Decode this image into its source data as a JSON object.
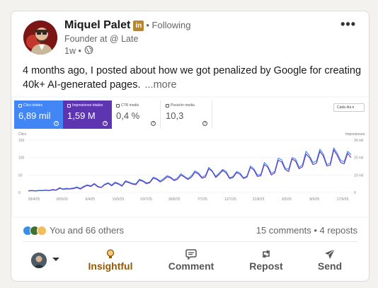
{
  "post": {
    "author": {
      "name": "Miquel Palet",
      "badge": "in",
      "following": "• Following",
      "headline": "Founder at @ Late",
      "time": "1w •"
    },
    "text": "4 months ago, I posted about how we got penalized by Google for creating 40k+ AI-generated pages.",
    "see_more": "...more"
  },
  "report": {
    "metrics": [
      {
        "label": "Clics totales",
        "value": "6,89 mil",
        "color": "#4285f4",
        "active": true
      },
      {
        "label": "Impresiones totales",
        "value": "1,59 M",
        "color": "#5e35b1",
        "active": true
      },
      {
        "label": "CTR medio",
        "value": "0,4 %",
        "active": false
      },
      {
        "label": "Posición media",
        "value": "10,3",
        "active": false
      }
    ],
    "dropdown": "Cada día",
    "help": "?"
  },
  "chart_data": {
    "type": "line",
    "left_axis_label": "Clics",
    "right_axis_label": "Impresiones",
    "left_ticks": [
      "150",
      "100",
      "50",
      "0"
    ],
    "right_ticks": [
      "30 mil",
      "20 mil",
      "10 mil",
      "0"
    ],
    "x_labels": [
      "28/4/25",
      "26/5/25",
      "6/4/25",
      "15/5/25",
      "23/7/25",
      "30/6/25",
      "7/7/25",
      "12/7/25",
      "21/8/25",
      "3/5/25",
      "8/9/25",
      "17/9/25"
    ],
    "ylim": [
      0,
      150
    ],
    "y2lim": [
      0,
      30000
    ],
    "series": [
      {
        "color": "#4285f4",
        "values": [
          5,
          6,
          5,
          6,
          6,
          7,
          6,
          9,
          7,
          14,
          10,
          12,
          11,
          13,
          16,
          12,
          18,
          22,
          19,
          26,
          18,
          15,
          24,
          28,
          21,
          30,
          26,
          20,
          34,
          30,
          26,
          25,
          38,
          34,
          28,
          30,
          44,
          40,
          33,
          40,
          48,
          44,
          36,
          42,
          54,
          46,
          40,
          48,
          62,
          56,
          44,
          48,
          72,
          62,
          46,
          56,
          66,
          60,
          42,
          46,
          60,
          56,
          42,
          47,
          76,
          68,
          50,
          52,
          86,
          76,
          55,
          60,
          98,
          94,
          70,
          66,
          100,
          96,
          72,
          80,
          118,
          105,
          86,
          90,
          124,
          110,
          80,
          84,
          128,
          112,
          92,
          88,
          118,
          108
        ]
      },
      {
        "color": "#5e35b1",
        "values": [
          4,
          5,
          4,
          5,
          5,
          6,
          5,
          7,
          6,
          12,
          9,
          10,
          10,
          11,
          14,
          10,
          16,
          20,
          17,
          24,
          16,
          14,
          22,
          26,
          19,
          27,
          24,
          18,
          31,
          28,
          24,
          22,
          35,
          32,
          25,
          28,
          41,
          38,
          30,
          36,
          45,
          42,
          34,
          38,
          50,
          44,
          37,
          44,
          58,
          53,
          41,
          44,
          68,
          60,
          43,
          52,
          63,
          56,
          40,
          43,
          57,
          52,
          40,
          44,
          72,
          64,
          46,
          48,
          80,
          72,
          50,
          56,
          92,
          88,
          66,
          60,
          96,
          90,
          68,
          74,
          110,
          100,
          80,
          84,
          118,
          104,
          76,
          78,
          122,
          106,
          86,
          82,
          112,
          100
        ]
      }
    ]
  },
  "social": {
    "reactions": "You and 66 others",
    "comments_reposts": "15 comments • 4 reposts"
  },
  "actions": {
    "insightful": "Insightful",
    "comment": "Comment",
    "repost": "Repost",
    "send": "Send"
  }
}
